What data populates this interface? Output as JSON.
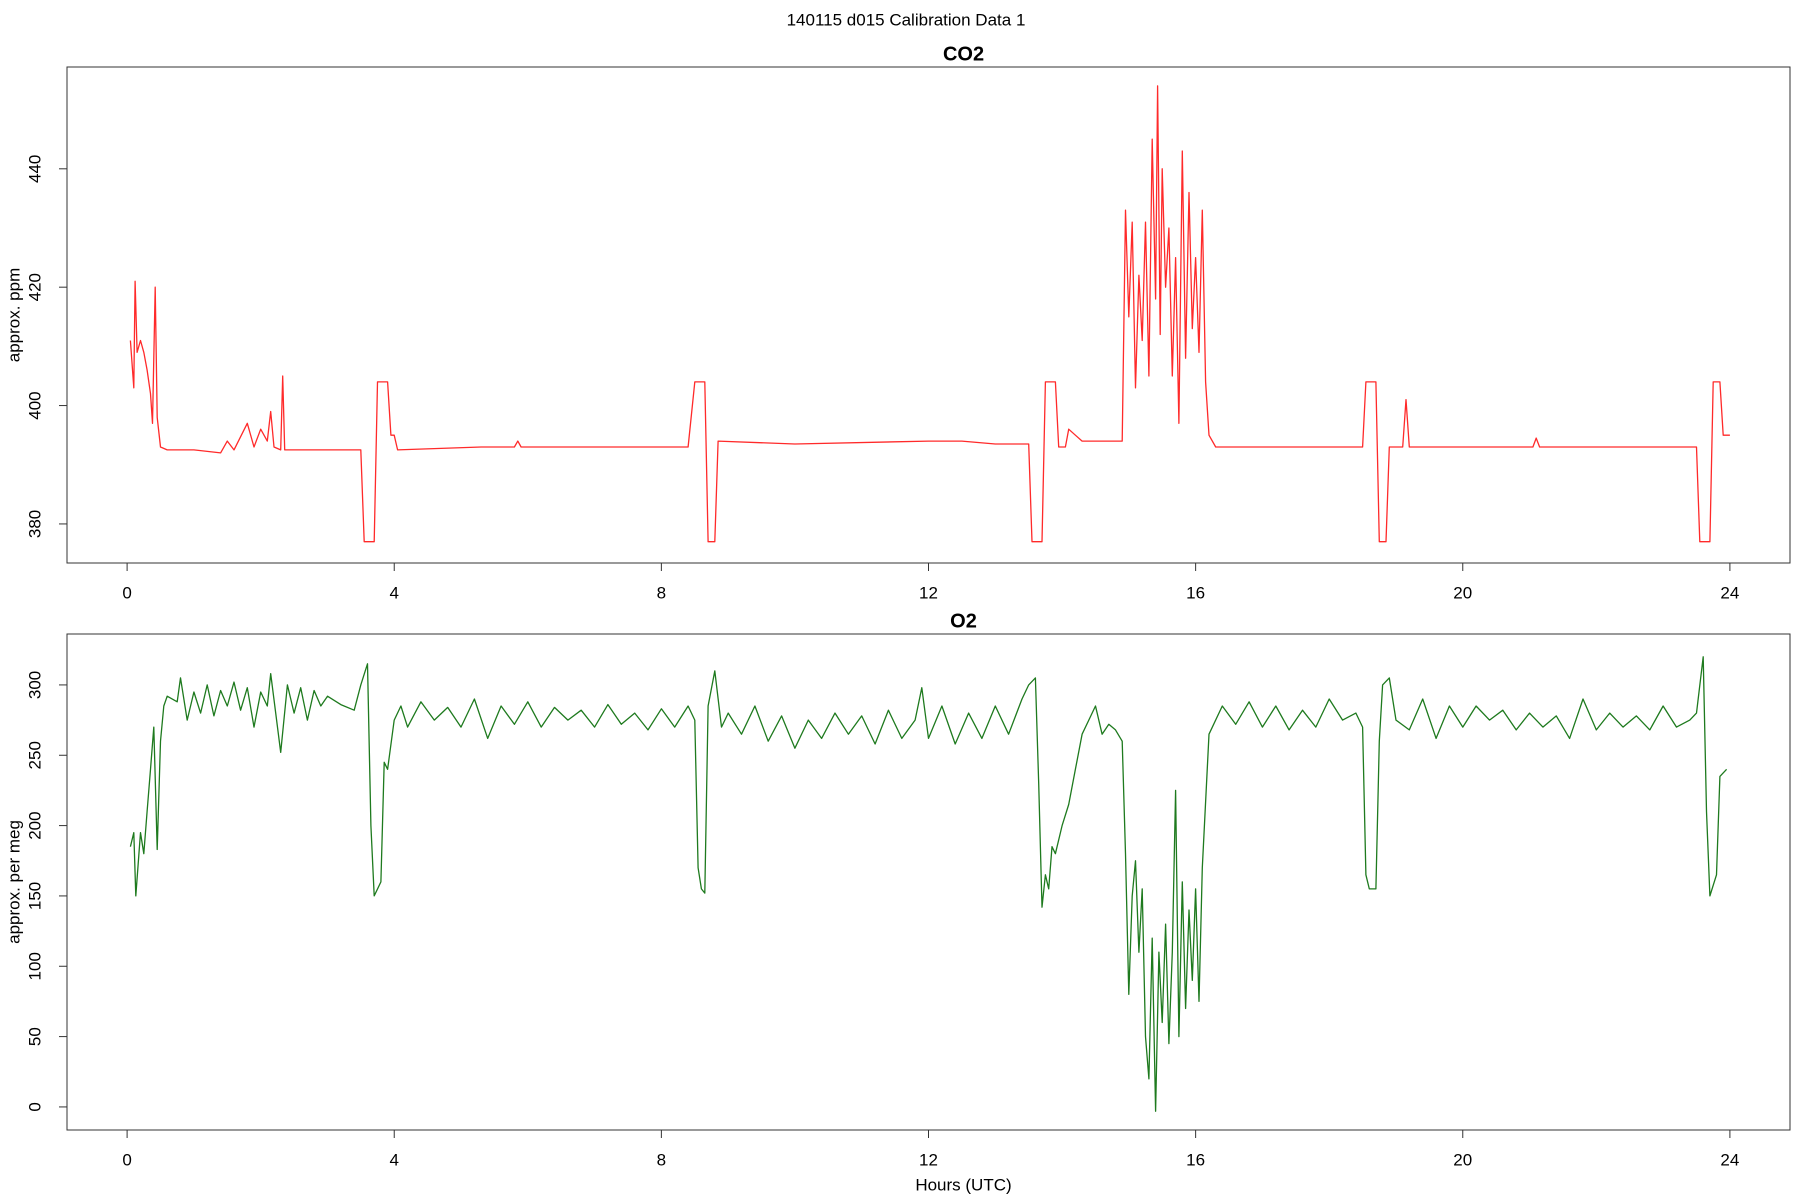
{
  "title": "140115   d015   Calibration Data 1",
  "chart_data": [
    {
      "type": "line",
      "title": "CO2",
      "ylabel": "approx. ppm",
      "color": "#ff2a2a",
      "xlim": [
        -0.9,
        24.9
      ],
      "xticks": [
        0,
        4,
        8,
        12,
        16,
        20,
        24
      ],
      "ylim": [
        373.4,
        457.2
      ],
      "yticks": [
        380,
        400,
        420,
        440
      ],
      "x": [
        0.05,
        0.1,
        0.12,
        0.15,
        0.2,
        0.25,
        0.3,
        0.35,
        0.38,
        0.42,
        0.45,
        0.5,
        0.6,
        1.0,
        1.4,
        1.5,
        1.6,
        1.8,
        1.9,
        2.0,
        2.1,
        2.15,
        2.2,
        2.3,
        2.33,
        2.36,
        3.0,
        3.5,
        3.55,
        3.7,
        3.75,
        3.9,
        3.95,
        4.0,
        4.05,
        5.3,
        5.8,
        5.85,
        5.9,
        7.0,
        8.4,
        8.5,
        8.65,
        8.7,
        8.8,
        8.85,
        10,
        12,
        12.5,
        13.0,
        13.5,
        13.55,
        13.7,
        13.75,
        13.9,
        13.95,
        14.05,
        14.1,
        14.2,
        14.3,
        14.9,
        14.95,
        15.0,
        15.05,
        15.1,
        15.15,
        15.2,
        15.25,
        15.3,
        15.35,
        15.4,
        15.43,
        15.47,
        15.5,
        15.55,
        15.6,
        15.65,
        15.7,
        15.75,
        15.8,
        15.85,
        15.9,
        15.95,
        16.0,
        16.05,
        16.1,
        16.15,
        16.2,
        16.3,
        17,
        18.5,
        18.55,
        18.7,
        18.75,
        18.85,
        18.9,
        19.1,
        19.15,
        19.2,
        20,
        21.05,
        21.1,
        21.15,
        22,
        23.5,
        23.55,
        23.7,
        23.75,
        23.85,
        23.9,
        24.0
      ],
      "values": [
        411,
        403,
        421,
        409,
        411,
        409,
        406,
        402,
        397,
        420,
        398,
        393,
        392.5,
        392.5,
        392,
        394,
        392.5,
        397,
        393,
        396,
        394,
        399,
        393,
        392.5,
        405,
        392.5,
        392.5,
        392.5,
        377,
        377,
        404,
        404,
        395,
        395,
        392.5,
        393,
        393,
        394,
        393,
        393,
        393,
        404,
        404,
        377,
        377,
        394,
        393.5,
        394,
        394,
        393.5,
        393.5,
        377,
        377,
        404,
        404,
        393,
        393,
        396,
        395,
        394,
        394,
        433,
        415,
        431,
        403,
        422,
        411,
        431,
        405,
        445,
        418,
        454,
        412,
        440,
        420,
        430,
        405,
        425,
        397,
        443,
        408,
        436,
        413,
        425,
        409,
        433,
        404,
        395,
        393,
        393,
        393,
        404,
        404,
        377,
        377,
        393,
        393,
        401,
        393,
        393,
        393,
        394.5,
        393,
        393,
        393,
        377,
        377,
        404,
        404,
        395,
        395
      ]
    },
    {
      "type": "line",
      "title": "O2",
      "ylabel": "approx. per meg",
      "xlabel": "Hours (UTC)",
      "color": "#1e7a1e",
      "xlim": [
        -0.9,
        24.9
      ],
      "xticks": [
        0,
        4,
        8,
        12,
        16,
        20,
        24
      ],
      "ylim": [
        -16.4,
        336.2
      ],
      "yticks": [
        0,
        50,
        100,
        150,
        200,
        250,
        300
      ],
      "x": [
        0.05,
        0.1,
        0.13,
        0.2,
        0.25,
        0.3,
        0.35,
        0.4,
        0.45,
        0.5,
        0.55,
        0.6,
        0.75,
        0.8,
        0.9,
        1.0,
        1.1,
        1.2,
        1.3,
        1.4,
        1.5,
        1.6,
        1.7,
        1.8,
        1.9,
        2.0,
        2.1,
        2.15,
        2.3,
        2.4,
        2.5,
        2.6,
        2.7,
        2.8,
        2.9,
        3.0,
        3.2,
        3.4,
        3.5,
        3.6,
        3.65,
        3.7,
        3.8,
        3.85,
        3.9,
        4.0,
        4.1,
        4.2,
        4.4,
        4.6,
        4.8,
        5.0,
        5.2,
        5.4,
        5.6,
        5.8,
        6.0,
        6.2,
        6.4,
        6.6,
        6.8,
        7.0,
        7.2,
        7.4,
        7.6,
        7.8,
        8.0,
        8.2,
        8.4,
        8.5,
        8.55,
        8.6,
        8.65,
        8.7,
        8.8,
        8.9,
        9.0,
        9.2,
        9.4,
        9.6,
        9.8,
        10.0,
        10.2,
        10.4,
        10.6,
        10.8,
        11.0,
        11.2,
        11.4,
        11.6,
        11.8,
        11.9,
        12.0,
        12.2,
        12.4,
        12.6,
        12.8,
        13.0,
        13.2,
        13.4,
        13.5,
        13.6,
        13.65,
        13.7,
        13.75,
        13.8,
        13.85,
        13.9,
        14.0,
        14.1,
        14.2,
        14.3,
        14.4,
        14.5,
        14.6,
        14.7,
        14.8,
        14.9,
        14.95,
        15.0,
        15.05,
        15.1,
        15.15,
        15.2,
        15.25,
        15.3,
        15.35,
        15.4,
        15.45,
        15.5,
        15.55,
        15.6,
        15.65,
        15.7,
        15.75,
        15.8,
        15.85,
        15.9,
        15.95,
        16.0,
        16.05,
        16.1,
        16.2,
        16.4,
        16.6,
        16.8,
        17.0,
        17.2,
        17.4,
        17.6,
        17.8,
        18.0,
        18.2,
        18.4,
        18.5,
        18.55,
        18.6,
        18.7,
        18.75,
        18.8,
        18.9,
        19.0,
        19.2,
        19.4,
        19.6,
        19.8,
        20.0,
        20.2,
        20.4,
        20.6,
        20.8,
        21.0,
        21.2,
        21.4,
        21.6,
        21.8,
        22.0,
        22.2,
        22.4,
        22.6,
        22.8,
        23.0,
        23.2,
        23.4,
        23.5,
        23.6,
        23.65,
        23.7,
        23.8,
        23.85,
        23.95
      ],
      "values": [
        185,
        195,
        150,
        195,
        180,
        210,
        240,
        270,
        183,
        260,
        285,
        292,
        288,
        305,
        275,
        295,
        280,
        300,
        278,
        296,
        285,
        302,
        282,
        298,
        270,
        295,
        285,
        308,
        252,
        300,
        280,
        298,
        275,
        296,
        285,
        292,
        286,
        282,
        300,
        315,
        200,
        150,
        160,
        245,
        240,
        275,
        285,
        270,
        288,
        275,
        284,
        270,
        290,
        262,
        285,
        272,
        288,
        270,
        284,
        275,
        282,
        270,
        286,
        272,
        280,
        268,
        283,
        270,
        285,
        275,
        170,
        155,
        152,
        285,
        310,
        270,
        280,
        265,
        285,
        260,
        278,
        255,
        275,
        262,
        280,
        265,
        278,
        258,
        282,
        262,
        275,
        298,
        262,
        285,
        258,
        280,
        262,
        285,
        265,
        290,
        300,
        305,
        230,
        142,
        165,
        155,
        185,
        180,
        200,
        215,
        240,
        265,
        275,
        285,
        265,
        272,
        268,
        260,
        180,
        80,
        150,
        175,
        110,
        155,
        50,
        20,
        120,
        -3,
        110,
        60,
        130,
        45,
        110,
        225,
        50,
        160,
        70,
        140,
        90,
        155,
        75,
        170,
        265,
        285,
        272,
        288,
        270,
        285,
        268,
        282,
        270,
        290,
        275,
        280,
        270,
        165,
        155,
        155,
        260,
        300,
        305,
        275,
        268,
        290,
        262,
        285,
        270,
        285,
        275,
        282,
        268,
        280,
        270,
        278,
        262,
        290,
        268,
        280,
        270,
        278,
        268,
        285,
        270,
        275,
        280,
        320,
        210,
        150,
        165,
        235,
        240
      ]
    }
  ]
}
